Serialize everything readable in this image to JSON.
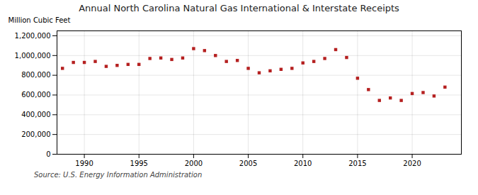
{
  "chart_data": {
    "type": "scatter",
    "title": "Annual North Carolina Natural Gas International & Interstate Receipts",
    "ylabel": "Million Cubic Feet",
    "annotations": [
      "Source: U.S. Energy Information Administration"
    ],
    "x": [
      1988,
      1989,
      1990,
      1991,
      1992,
      1993,
      1994,
      1995,
      1996,
      1997,
      1998,
      1999,
      2000,
      2001,
      2002,
      2003,
      2004,
      2005,
      2006,
      2007,
      2008,
      2009,
      2010,
      2011,
      2012,
      2013,
      2014,
      2015,
      2016,
      2017,
      2018,
      2019,
      2020,
      2021,
      2022,
      2023
    ],
    "values": [
      870000,
      930000,
      930000,
      940000,
      890000,
      900000,
      910000,
      910000,
      970000,
      975000,
      960000,
      975000,
      1070000,
      1050000,
      1000000,
      940000,
      950000,
      870000,
      825000,
      845000,
      860000,
      870000,
      925000,
      940000,
      970000,
      1060000,
      980000,
      770000,
      655000,
      545000,
      570000,
      545000,
      615000,
      625000,
      590000,
      680000
    ],
    "color": "#b52020",
    "marker": "square",
    "xlim": [
      1987.5,
      2024.5
    ],
    "xticks": [
      1990,
      1995,
      2000,
      2005,
      2010,
      2015,
      2020
    ],
    "ylim": [
      0,
      1250000
    ],
    "yticks": [
      0,
      {
        "value": 200000,
        "label": "200,000"
      },
      {
        "value": 400000,
        "label": "400,000"
      },
      {
        "value": 600000,
        "label": "600,000"
      },
      {
        "value": 800000,
        "label": "800,000"
      },
      {
        "value": 1000000,
        "label": "1,000,000"
      },
      {
        "value": 1200000,
        "label": "1,200,000"
      }
    ],
    "grid": true
  }
}
